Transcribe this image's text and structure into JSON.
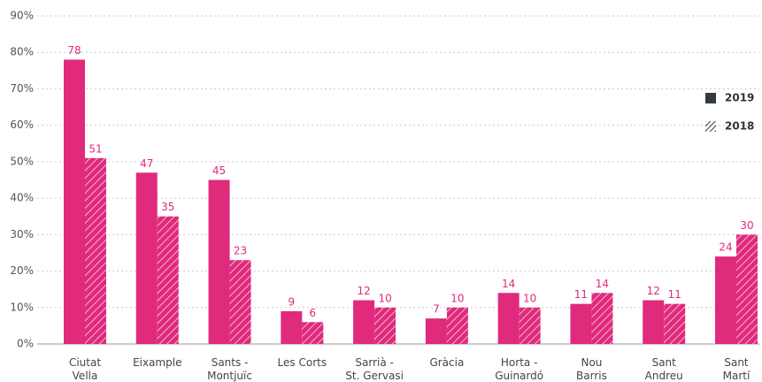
{
  "chart_data": {
    "type": "bar",
    "categories": [
      "Ciutat\nVella",
      "Eixample",
      "Sants -\nMontjuïc",
      "Les Corts",
      "Sarrià -\nSt. Gervasi",
      "Gràcia",
      "Horta -\nGuinardó",
      "Nou\nBarris",
      "Sant\nAndreu",
      "Sant\nMartí"
    ],
    "series": [
      {
        "name": "2019",
        "color": "#e02a7c",
        "pattern": "solid",
        "values": [
          78,
          47,
          45,
          9,
          12,
          7,
          14,
          11,
          12,
          24
        ]
      },
      {
        "name": "2018",
        "color": "#e02a7c",
        "pattern": "hatch",
        "values": [
          51,
          35,
          23,
          6,
          10,
          10,
          10,
          14,
          11,
          30
        ]
      }
    ],
    "ylim": [
      0,
      90
    ],
    "yticks": [
      {
        "value": 0,
        "label": "0%"
      },
      {
        "value": 10,
        "label": "10%"
      },
      {
        "value": 20,
        "label": "20%"
      },
      {
        "value": 30,
        "label": "30%"
      },
      {
        "value": 40,
        "label": "40%"
      },
      {
        "value": 50,
        "label": "50%"
      },
      {
        "value": 60,
        "label": "60%"
      },
      {
        "value": 70,
        "label": "70%"
      },
      {
        "value": 80,
        "label": "80%"
      },
      {
        "value": 90,
        "label": "90%"
      }
    ],
    "grid": true,
    "legend": "right"
  }
}
